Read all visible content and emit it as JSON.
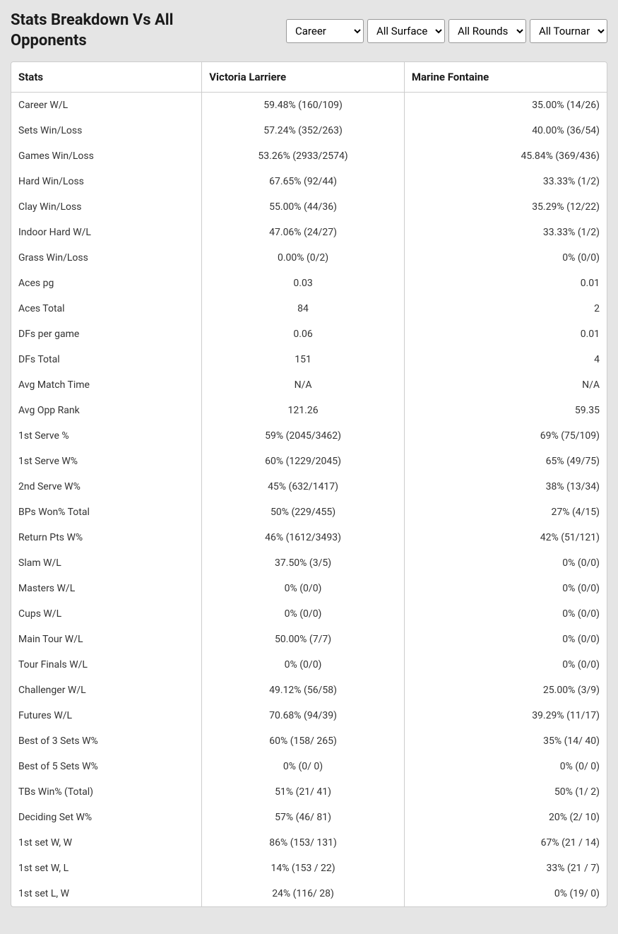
{
  "header": {
    "title": "Stats Breakdown Vs All Opponents"
  },
  "filters": {
    "career": "Career",
    "surface": "All Surfaces",
    "rounds": "All Rounds",
    "tournament": "All Tournaments"
  },
  "table": {
    "columns": [
      "Stats",
      "Victoria Larriere",
      "Marine Fontaine"
    ],
    "rows": [
      [
        "Career W/L",
        "59.48% (160/109)",
        "35.00% (14/26)"
      ],
      [
        "Sets Win/Loss",
        "57.24% (352/263)",
        "40.00% (36/54)"
      ],
      [
        "Games Win/Loss",
        "53.26% (2933/2574)",
        "45.84% (369/436)"
      ],
      [
        "Hard Win/Loss",
        "67.65% (92/44)",
        "33.33% (1/2)"
      ],
      [
        "Clay Win/Loss",
        "55.00% (44/36)",
        "35.29% (12/22)"
      ],
      [
        "Indoor Hard W/L",
        "47.06% (24/27)",
        "33.33% (1/2)"
      ],
      [
        "Grass Win/Loss",
        "0.00% (0/2)",
        "0% (0/0)"
      ],
      [
        "Aces pg",
        "0.03",
        "0.01"
      ],
      [
        "Aces Total",
        "84",
        "2"
      ],
      [
        "DFs per game",
        "0.06",
        "0.01"
      ],
      [
        "DFs Total",
        "151",
        "4"
      ],
      [
        "Avg Match Time",
        "N/A",
        "N/A"
      ],
      [
        "Avg Opp Rank",
        "121.26",
        "59.35"
      ],
      [
        "1st Serve %",
        "59% (2045/3462)",
        "69% (75/109)"
      ],
      [
        "1st Serve W%",
        "60% (1229/2045)",
        "65% (49/75)"
      ],
      [
        "2nd Serve W%",
        "45% (632/1417)",
        "38% (13/34)"
      ],
      [
        "BPs Won% Total",
        "50% (229/455)",
        "27% (4/15)"
      ],
      [
        "Return Pts W%",
        "46% (1612/3493)",
        "42% (51/121)"
      ],
      [
        "Slam W/L",
        "37.50% (3/5)",
        "0% (0/0)"
      ],
      [
        "Masters W/L",
        "0% (0/0)",
        "0% (0/0)"
      ],
      [
        "Cups W/L",
        "0% (0/0)",
        "0% (0/0)"
      ],
      [
        "Main Tour W/L",
        "50.00% (7/7)",
        "0% (0/0)"
      ],
      [
        "Tour Finals W/L",
        "0% (0/0)",
        "0% (0/0)"
      ],
      [
        "Challenger W/L",
        "49.12% (56/58)",
        "25.00% (3/9)"
      ],
      [
        "Futures W/L",
        "70.68% (94/39)",
        "39.29% (11/17)"
      ],
      [
        "Best of 3 Sets W%",
        "60% (158/ 265)",
        "35% (14/ 40)"
      ],
      [
        "Best of 5 Sets W%",
        "0% (0/ 0)",
        "0% (0/ 0)"
      ],
      [
        "TBs Win% (Total)",
        "51% (21/ 41)",
        "50% (1/ 2)"
      ],
      [
        "Deciding Set W%",
        "57% (46/ 81)",
        "20% (2/ 10)"
      ],
      [
        "1st set W, W",
        "86% (153/ 131)",
        "67% (21 / 14)"
      ],
      [
        "1st set W, L",
        "14% (153 / 22)",
        "33% (21 / 7)"
      ],
      [
        "1st set L, W",
        "24% (116/ 28)",
        "0% (19/ 0)"
      ]
    ]
  },
  "styling": {
    "background_color": "#e5e5e5",
    "table_background": "#ffffff",
    "border_color": "#cccccc",
    "text_color": "#333333",
    "header_text_color": "#1a1a1a",
    "title_fontsize": 22,
    "header_fontsize": 15,
    "cell_fontsize": 14
  }
}
